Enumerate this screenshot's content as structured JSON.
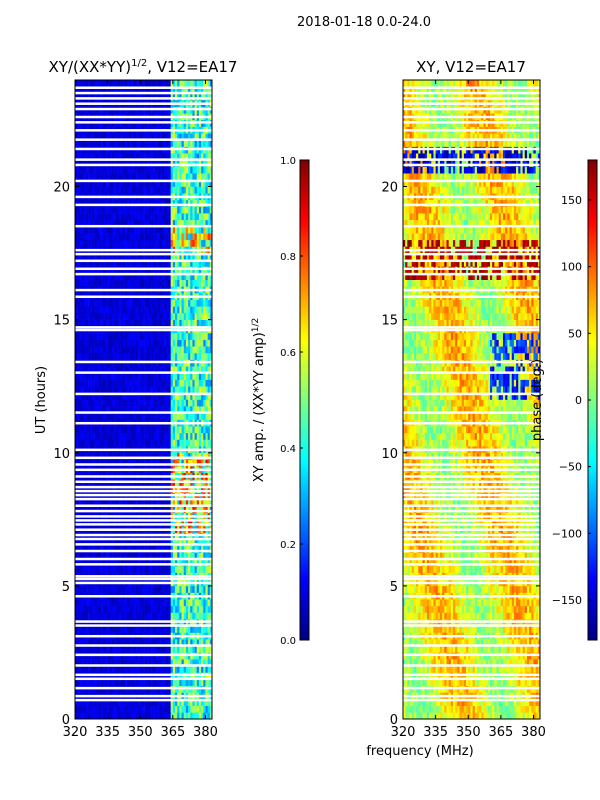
{
  "suptitle": "2018-01-18 0.0-24.0",
  "xlabel": "frequency (MHz)",
  "colors": {
    "jet": [
      "#00007f",
      "#0000ff",
      "#007fff",
      "#00ffff",
      "#7fff7f",
      "#ffff00",
      "#ff7f00",
      "#ff0000",
      "#7f0000"
    ],
    "gap": "#ffffff",
    "frame": "#000000"
  },
  "chart_data": [
    {
      "type": "heatmap",
      "title_main": "XY/(XX*YY)",
      "title_exp": "1/2",
      "title_tail": ", V12=EA17",
      "ylabel": "UT (hours)",
      "xlim": [
        320,
        383
      ],
      "ylim": [
        0,
        24
      ],
      "xticks": [
        "320",
        "335",
        "350",
        "365",
        "380"
      ],
      "yticks": [
        "0",
        "5",
        "10",
        "15",
        "20"
      ],
      "description_values": {
        "low_band_value": 0.05,
        "high_band_range": [
          364,
          382
        ],
        "high_band_values": [
          0.2,
          0.9
        ]
      },
      "colorbar": {
        "label_main": "XY amp. / (XX*YY amp)",
        "label_exp": "1/2",
        "range": [
          0.0,
          1.0
        ],
        "ticks": [
          "0.0",
          "0.2",
          "0.4",
          "0.6",
          "0.8",
          "1.0"
        ]
      }
    },
    {
      "type": "heatmap",
      "title": "XY, V12=EA17",
      "xlim": [
        320,
        383
      ],
      "ylim": [
        0,
        24
      ],
      "xticks": [
        "320",
        "335",
        "350",
        "365",
        "380"
      ],
      "yticks": [
        "0",
        "5",
        "10",
        "15",
        "20"
      ],
      "description_values": {
        "phase_range_deg": [
          -180,
          180
        ],
        "dominant_phase_deg": [
          30,
          90
        ]
      },
      "colorbar": {
        "label": "phase (deg.)",
        "range": [
          -180,
          180
        ],
        "ticks": [
          "-150",
          "-100",
          "-50",
          "0",
          "50",
          "100",
          "150"
        ]
      }
    }
  ],
  "gaps_ut_hours": [
    0.7,
    0.85,
    1.15,
    1.5,
    1.65,
    2.0,
    2.4,
    2.75,
    3.1,
    3.5,
    3.65,
    4.6,
    5.1,
    5.25,
    5.35,
    5.8,
    6.0,
    6.3,
    6.55,
    6.75,
    6.9,
    7.1,
    7.3,
    7.45,
    7.6,
    7.8,
    8.0,
    8.25,
    8.4,
    8.55,
    8.7,
    8.9,
    9.1,
    9.35,
    9.55,
    9.8,
    10.1,
    11.1,
    11.5,
    12.2,
    13.0,
    13.4,
    14.6,
    14.7,
    15.85,
    16.1,
    16.7,
    16.9,
    17.2,
    17.45,
    17.6,
    18.5,
    19.3,
    19.6,
    20.2,
    20.8,
    21.0,
    21.4,
    21.75,
    22.1,
    22.4,
    22.6,
    22.9,
    23.1,
    23.3,
    23.5,
    23.7
  ]
}
